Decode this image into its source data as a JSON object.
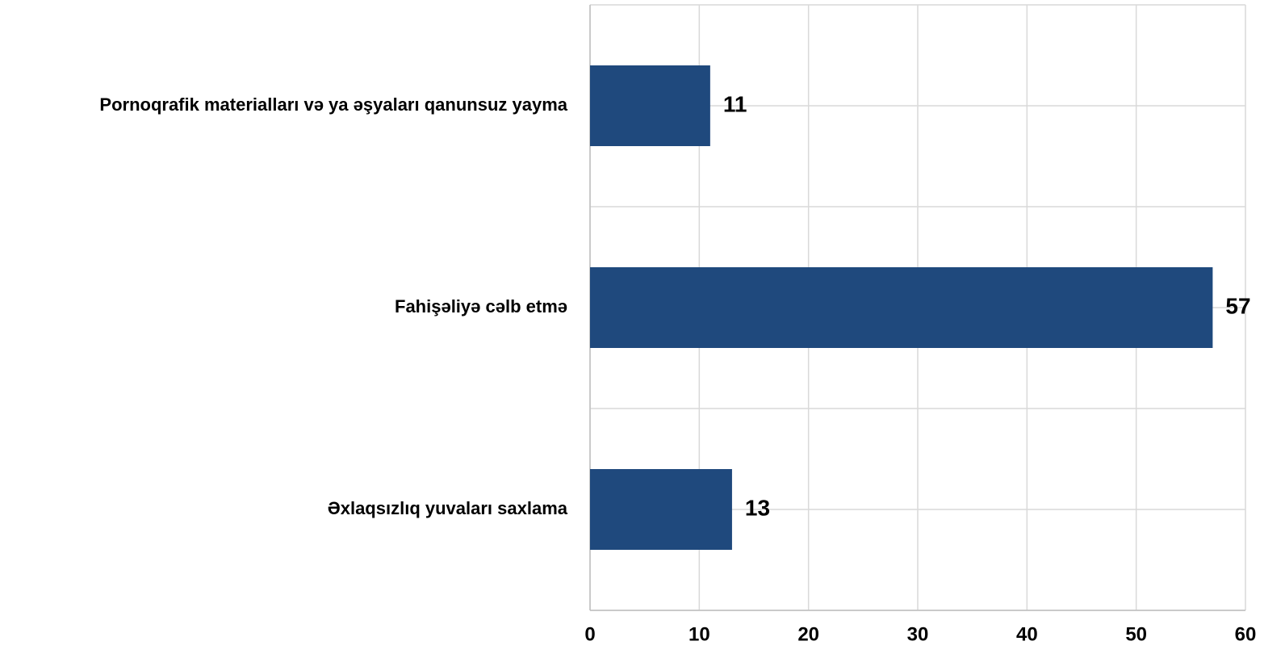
{
  "chart_data": {
    "type": "barh",
    "categories": [
      "Pornoqrafik materialları və ya əşyaları qanunsuz yayma",
      "Fahişəliyə cəlb etmə",
      "Əxlaqsızlıq yuvaları saxlama"
    ],
    "values": [
      11,
      57,
      13
    ],
    "color": "#1f497d",
    "xlim": [
      0,
      60
    ],
    "xticks": [
      0,
      10,
      20,
      30,
      40,
      50,
      60
    ],
    "grid": true
  }
}
